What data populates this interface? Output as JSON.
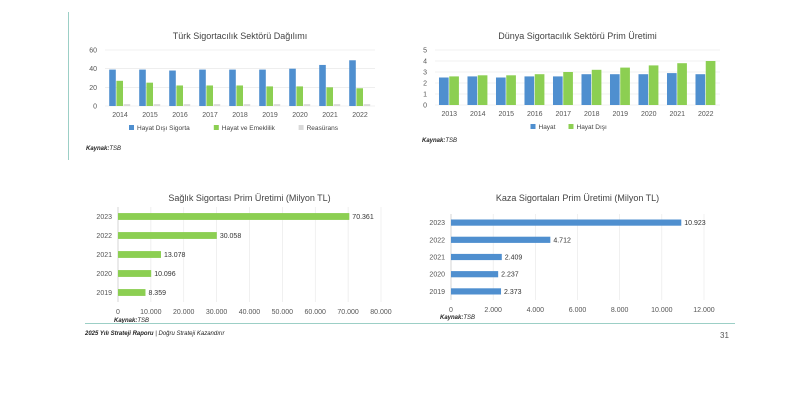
{
  "charts": [
    {
      "type": "bar",
      "title": "Türk Sigortacılık Sektörü Dağılımı",
      "categories": [
        "2014",
        "2015",
        "2016",
        "2017",
        "2018",
        "2019",
        "2020",
        "2021",
        "2022"
      ],
      "series": [
        {
          "name": "Hayat Dışı Sigorta",
          "values": [
            39,
            39,
            38,
            39,
            39,
            39,
            40,
            44,
            49
          ],
          "color": "#4f8fcf"
        },
        {
          "name": "Hayat ve Emeklilik",
          "values": [
            27,
            25,
            22,
            22,
            22,
            21,
            21,
            20,
            19
          ],
          "color": "#8ccf52"
        },
        {
          "name": "Reasürans",
          "values": [
            2,
            2,
            2,
            2,
            2,
            2,
            2,
            2,
            2
          ],
          "color": "#d9d9d9"
        }
      ],
      "ylim": [
        0,
        60
      ],
      "yticks": [
        0,
        20,
        40,
        60
      ],
      "source_label": "Kaynak:",
      "source": "TSB"
    },
    {
      "type": "bar",
      "title": "Dünya Sigortacılık Sektörü Prim Üretimi",
      "categories": [
        "2013",
        "2014",
        "2015",
        "2016",
        "2017",
        "2018",
        "2019",
        "2020",
        "2021",
        "2022"
      ],
      "series": [
        {
          "name": "Hayat",
          "values": [
            2.5,
            2.6,
            2.5,
            2.6,
            2.6,
            2.8,
            2.8,
            2.8,
            2.9,
            2.8
          ],
          "color": "#4f8fcf"
        },
        {
          "name": "Hayat Dışı",
          "values": [
            2.6,
            2.7,
            2.7,
            2.8,
            3.0,
            3.2,
            3.4,
            3.6,
            3.8,
            4.0
          ],
          "color": "#8ccf52"
        }
      ],
      "ylim": [
        0,
        5
      ],
      "yticks": [
        0,
        1,
        2,
        3,
        4,
        5
      ],
      "source_label": "Kaynak:",
      "source": "TSB"
    },
    {
      "type": "bar",
      "orientation": "horizontal",
      "title": "Sağlık Sigortası Prim Üretimi  (Milyon TL)",
      "categories": [
        "2023",
        "2022",
        "2021",
        "2020",
        "2019"
      ],
      "values": [
        70361,
        30058,
        13078,
        10096,
        8359
      ],
      "labels": [
        "70.361",
        "30.058",
        "13.078",
        "10.096",
        "8.359"
      ],
      "color": "#8ccf52",
      "xlim": [
        0,
        80000
      ],
      "xticks": [
        "0",
        "10.000",
        "20.000",
        "30.000",
        "40.000",
        "50.000",
        "60.000",
        "70.000",
        "80.000"
      ],
      "source_label": "Kaynak:",
      "source": "TSB"
    },
    {
      "type": "bar",
      "orientation": "horizontal",
      "title": "Kaza Sigortaları Prim Üretimi (Milyon TL)",
      "categories": [
        "2023",
        "2022",
        "2021",
        "2020",
        "2019"
      ],
      "values": [
        10923,
        4712,
        2409,
        2237,
        2373
      ],
      "labels": [
        "10.923",
        "4.712",
        "2.409",
        "2.237",
        "2.373"
      ],
      "color": "#4f8fcf",
      "xlim": [
        0,
        12000
      ],
      "xticks": [
        "0",
        "2.000",
        "4.000",
        "6.000",
        "8.000",
        "10.000",
        "12.000"
      ],
      "source_label": "Kaynak:",
      "source": "TSB"
    }
  ],
  "footer": {
    "report": "2025 Yılı Strateji Raporu",
    "separator": "|",
    "slogan": "Doğru Strateji Kazandırır"
  },
  "page_number": "31"
}
